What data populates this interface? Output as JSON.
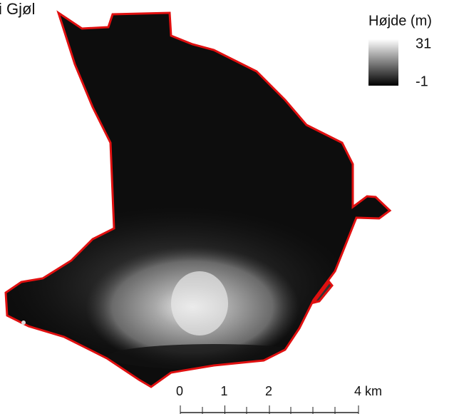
{
  "title": "i Gjøl",
  "legend": {
    "title": "Højde (m)",
    "max": 31,
    "min": -1
  },
  "scale_bar": {
    "ticks": [
      {
        "value": 0,
        "label": "0"
      },
      {
        "value": 1,
        "label": "1"
      },
      {
        "value": 2,
        "label": "2"
      },
      {
        "value": 4,
        "label": "4 km"
      }
    ]
  }
}
